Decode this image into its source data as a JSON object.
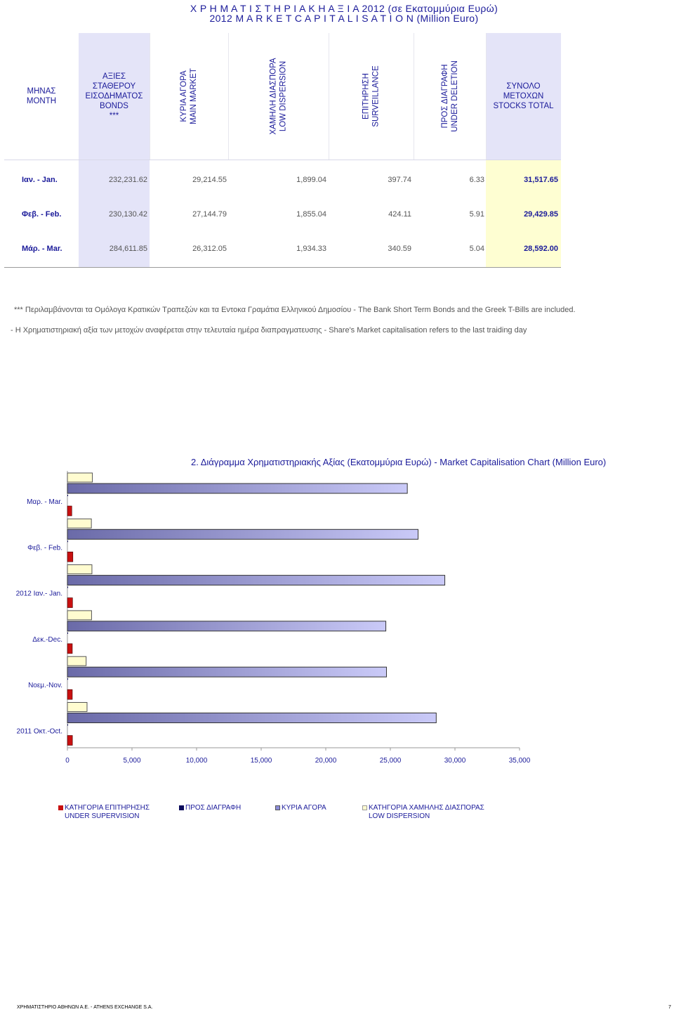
{
  "title_line1": "Χ Ρ Η Μ Α Τ Ι Σ Τ Η Ρ Ι Α Κ Η    Α Ξ Ι Α   2012    (σε Εκατομμύρια Ευρώ)",
  "title_line2": "2012    M A R K E T    C A P I T A L I S A T I O N    (Million Euro)",
  "table": {
    "headers": {
      "month": [
        "ΜΗΝΑΣ",
        "MONTH"
      ],
      "bonds": [
        "ΑΞΙΕΣ",
        "ΣΤΑΘΕΡΟΥ",
        "ΕΙΣΟΔΗΜΑΤΟΣ",
        "BONDS",
        "***"
      ],
      "main": [
        "ΚΥΡΙΑ ΑΓΟΡΑ",
        "MAIN MARKET"
      ],
      "low": [
        "ΧΑΜΗΛΗ ΔΙΑΣΠΟΡΑ",
        "LOW DISPERSION"
      ],
      "surv": [
        "ΕΠΙΤΗΡΗΣΗ",
        "SURVEILLANCE"
      ],
      "del": [
        "ΠΡΟΣ ΔΙΑΓΡΑΦΗ",
        "UNDER DELETION"
      ],
      "total": [
        "ΣΥΝΟΛΟ ΜΕΤΟΧΩΝ",
        "STOCKS TOTAL"
      ]
    },
    "rows": [
      {
        "month": "Ιαν. - Jan.",
        "bonds": "232,231.62",
        "main": "29,214.55",
        "low": "1,899.04",
        "surv": "397.74",
        "del": "6.33",
        "total": "31,517.65"
      },
      {
        "month": "Φεβ. - Feb.",
        "bonds": "230,130.42",
        "main": "27,144.79",
        "low": "1,855.04",
        "surv": "424.11",
        "del": "5.91",
        "total": "29,429.85"
      },
      {
        "month": "Μάρ. - Mar.",
        "bonds": "284,611.85",
        "main": "26,312.05",
        "low": "1,934.33",
        "surv": "340.59",
        "del": "5.04",
        "total": "28,592.00"
      }
    ]
  },
  "notes": [
    "*** Περιλαμβάνονται τα Ομόλογα Κρατικών Τραπεζών και τα Εντοκα Γραμάτια Ελληνικού Δημοσίου - The Bank Short Term Bonds and the Greek T-Bills are included.",
    "- Η Χρηματιστηριακή αξία των μετοχών αναφέρεται στην τελευταία ημέρα διαπραγματευσης - Share's Market capitalisation refers to the last traiding day"
  ],
  "chart_data": {
    "type": "bar",
    "orientation": "horizontal",
    "title": "2. Διάγραμμα Χρηματιστηριακής Αξίας (Εκατομμύρια Ευρώ) - Market Capitalisation Chart (Million Euro)",
    "categories": [
      "Μαρ. - Mar.",
      "Φεβ. - Feb.",
      "2012  Ιαν.- Jan.",
      "Δεκ.-Dec.",
      "Νοεμ.-Nov.",
      "2011 Οκτ.-Oct."
    ],
    "series": [
      {
        "name": "ΚΑΤΗΓΟΡΙΑ ΧΑΜΗΛΗΣ ΔΙΑΣΠΟΡΑΣ LOW DISPERSION",
        "color": "#fffcd0",
        "values": [
          1934,
          1855,
          1899,
          1870,
          1450,
          1520
        ]
      },
      {
        "name": "ΚΥΡΙΑ ΑΓΟΡΑ",
        "color": "#b8b8ee",
        "values": [
          26312,
          27145,
          29215,
          24650,
          24700,
          28550
        ]
      },
      {
        "name": "ΠΡΟΣ ΔΙΑΓΡΑΦΗ",
        "color": "#0a0a5c",
        "values": [
          5,
          6,
          6,
          6,
          6,
          6
        ]
      },
      {
        "name": "ΚΑΤΗΓΟΡΙΑ ΕΠΙΤΗΡΗΣΗΣ UNDER SUPERVISION",
        "color": "#c81010",
        "values": [
          341,
          424,
          398,
          380,
          380,
          390
        ]
      }
    ],
    "xlim": [
      0,
      35000
    ],
    "xticks": [
      "0",
      "5,000",
      "10,000",
      "15,000",
      "20,000",
      "25,000",
      "30,000",
      "35,000"
    ],
    "legend": [
      {
        "lines": [
          "ΚΑΤΗΓΟΡΙΑ ΕΠΙΤΗΡΗΣΗΣ",
          "UNDER SUPERVISION"
        ],
        "color": "#c81010"
      },
      {
        "lines": [
          "ΠΡΟΣ ΔΙΑΓΡΑΦΗ"
        ],
        "color": "#0a0a5c"
      },
      {
        "lines": [
          "ΚΥΡΙΑ ΑΓΟΡΑ"
        ],
        "color": "#8c8cd8"
      },
      {
        "lines": [
          "ΚΑΤΗΓΟΡΙΑ ΧΑΜΗΛΗΣ ΔΙΑΣΠΟΡΑΣ",
          "LOW DISPERSION"
        ],
        "color": "#fffcd0"
      }
    ],
    "legend_position": "bottom"
  },
  "footer_left": "ΧΡΗΜΑΤΙΣΤΗΡΙΟ ΑΘΗΝΩΝ Α.Ε. - ATHENS EXCHANGE S.A.",
  "page_number": "7"
}
